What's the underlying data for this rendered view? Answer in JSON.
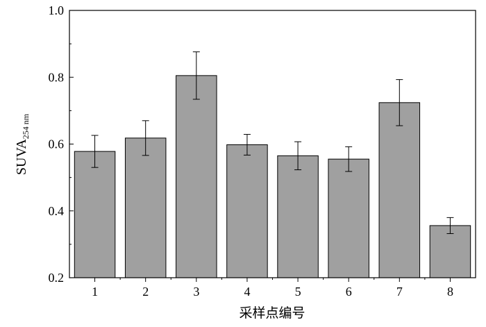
{
  "chart_data": {
    "type": "bar",
    "categories": [
      "1",
      "2",
      "3",
      "4",
      "5",
      "6",
      "7",
      "8"
    ],
    "values": [
      0.578,
      0.618,
      0.805,
      0.598,
      0.565,
      0.555,
      0.724,
      0.356
    ],
    "errors": [
      0.048,
      0.052,
      0.071,
      0.031,
      0.042,
      0.037,
      0.069,
      0.024
    ],
    "title": "",
    "xlabel": "采样点编号",
    "ylabel": {
      "main": "SUVA",
      "sub": "254 nm"
    },
    "ylim": [
      0.2,
      1.0
    ],
    "yticks": [
      "0.2",
      "0.4",
      "0.6",
      "0.8",
      "1.0"
    ],
    "grid": false,
    "legend": "none",
    "bar_color": "#a0a0a0",
    "edge_color": "#000000"
  }
}
